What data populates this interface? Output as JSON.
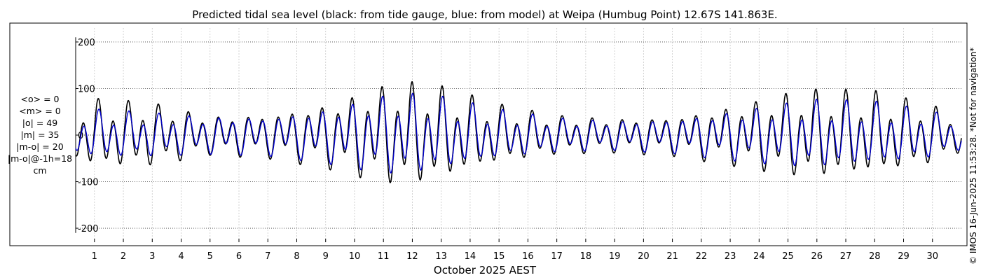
{
  "chart_data": {
    "type": "line",
    "title": "Predicted tidal sea level (black: from tide gauge, blue: from model) at Weipa (Humbug Point) 12.67S 141.863E.",
    "xlabel": "October 2025 AEST",
    "ylabel": "",
    "xlim": [
      0.35,
      31.0
    ],
    "ylim": [
      -230,
      230
    ],
    "y_ticks": [
      -200,
      -100,
      0,
      100,
      200
    ],
    "x_ticks": [
      1,
      2,
      3,
      4,
      5,
      6,
      7,
      8,
      9,
      10,
      11,
      12,
      13,
      14,
      15,
      16,
      17,
      18,
      19,
      20,
      21,
      22,
      23,
      24,
      25,
      26,
      27,
      28,
      29,
      30
    ],
    "grid": true,
    "series": [
      {
        "name": "from tide gauge",
        "color": "#000000",
        "amp_days": [
          0.35,
          1,
          3,
          5,
          7,
          9,
          11,
          12,
          13,
          15,
          17,
          19,
          21,
          23,
          25,
          26,
          28,
          30,
          31.0
        ],
        "amp_values": [
          55,
          70,
          65,
          40,
          45,
          65,
          100,
          105,
          95,
          60,
          40,
          35,
          40,
          60,
          85,
          90,
          85,
          60,
          35
        ]
      },
      {
        "name": "from model",
        "color": "#0000cc",
        "amp_days": [
          0.35,
          1,
          3,
          5,
          7,
          9,
          11,
          12,
          13,
          15,
          17,
          19,
          21,
          23,
          25,
          26,
          28,
          30,
          31.0
        ],
        "amp_values": [
          40,
          50,
          45,
          38,
          40,
          55,
          80,
          82,
          75,
          50,
          35,
          30,
          35,
          50,
          65,
          70,
          65,
          48,
          30
        ]
      }
    ]
  },
  "stats": {
    "lines": [
      "<o> = 0",
      "<m> = 0",
      "|o| = 49",
      "|m| = 35",
      "|m-o| = 20",
      "|m-o|@-1h=18",
      "cm"
    ]
  },
  "credit": "© IMOS 16-Jun-2025 11:53:28. *Not for navigation*"
}
